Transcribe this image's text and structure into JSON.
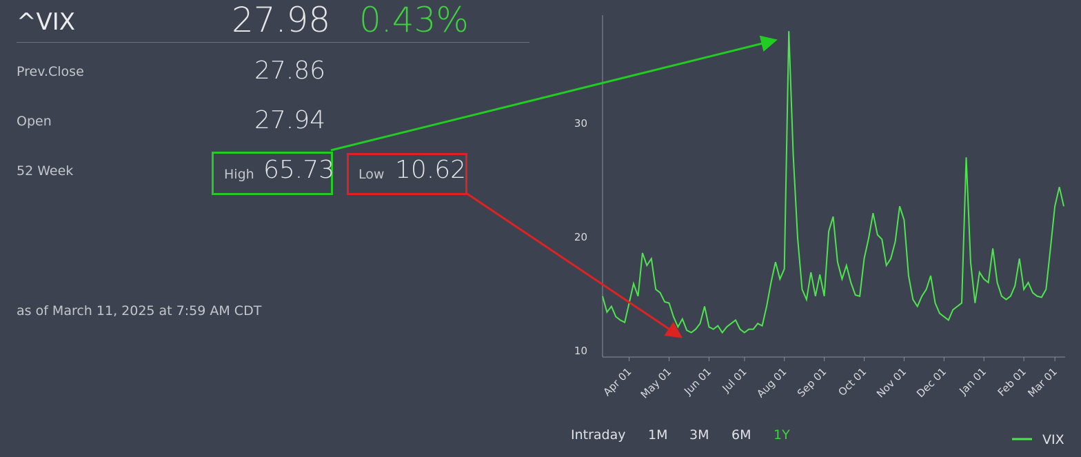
{
  "quote": {
    "symbol": "^VIX",
    "price": "27.98",
    "change": "0.43%",
    "rows": [
      {
        "label": "Prev.Close",
        "value": "27.86"
      },
      {
        "label": "Open",
        "value": "27.94"
      }
    ],
    "week52": {
      "label": "52 Week",
      "high_label": "High",
      "high": "65.73",
      "low_label": "Low",
      "low": "10.62"
    },
    "as_of": "as of March 11, 2025 at 7:59 AM CDT"
  },
  "ranges": [
    "Intraday",
    "1M",
    "3M",
    "6M",
    "1Y"
  ],
  "active_range": "1Y",
  "chart_data": {
    "type": "line",
    "categories": [
      null,
      null,
      null,
      null,
      null,
      null,
      "Apr 01",
      null,
      null,
      null,
      null,
      null,
      null,
      null,
      null,
      "May 01",
      null,
      null,
      null,
      null,
      null,
      null,
      null,
      null,
      "Jun 01",
      null,
      null,
      null,
      null,
      null,
      null,
      null,
      "Jul 01",
      null,
      null,
      null,
      null,
      null,
      null,
      null,
      null,
      "Aug 01",
      null,
      null,
      null,
      null,
      null,
      null,
      null,
      null,
      "Sep 01",
      null,
      null,
      null,
      null,
      null,
      null,
      null,
      null,
      "Oct 01",
      null,
      null,
      null,
      null,
      null,
      null,
      null,
      null,
      "Nov 01",
      null,
      null,
      null,
      null,
      null,
      null,
      null,
      null,
      "Dec 01",
      null,
      null,
      null,
      null,
      null,
      null,
      null,
      null,
      "Jan 01",
      null,
      null,
      null,
      null,
      null,
      null,
      null,
      null,
      "Feb 01",
      null,
      null,
      null,
      null,
      null,
      null,
      "Mar 01",
      null,
      null
    ],
    "series": [
      {
        "name": "VIX",
        "color": "#4ee44e",
        "values": [
          14.8,
          13.4,
          13.9,
          13.0,
          12.7,
          12.5,
          14.2,
          15.9,
          14.8,
          18.6,
          17.5,
          18.1,
          15.4,
          15.1,
          14.3,
          14.2,
          13.0,
          12.1,
          12.8,
          11.8,
          11.6,
          11.9,
          12.4,
          13.9,
          12.1,
          11.9,
          12.2,
          11.6,
          12.1,
          12.4,
          12.7,
          11.9,
          11.6,
          11.9,
          11.9,
          12.4,
          12.2,
          13.9,
          16.0,
          17.8,
          16.3,
          17.2,
          38.1,
          27.2,
          19.9,
          15.4,
          14.5,
          16.9,
          14.8,
          16.7,
          14.8,
          20.5,
          21.8,
          17.8,
          16.3,
          17.5,
          16.0,
          14.9,
          14.8,
          18.1,
          19.9,
          22.1,
          20.2,
          19.8,
          17.5,
          18.1,
          19.6,
          22.7,
          21.5,
          16.6,
          14.5,
          13.9,
          14.8,
          15.4,
          16.6,
          14.2,
          13.3,
          13.0,
          12.7,
          13.6,
          13.9,
          14.2,
          27.0,
          17.8,
          14.2,
          16.9,
          16.3,
          16.0,
          19.0,
          16.0,
          14.8,
          14.5,
          14.8,
          15.7,
          18.1,
          15.4,
          16.0,
          15.1,
          14.8,
          14.7,
          15.4,
          19.0,
          22.7,
          24.4,
          22.7
        ]
      }
    ],
    "ylim": [
      9.45,
      39.5
    ],
    "yticks": [
      10,
      20,
      30
    ],
    "grid": false
  }
}
